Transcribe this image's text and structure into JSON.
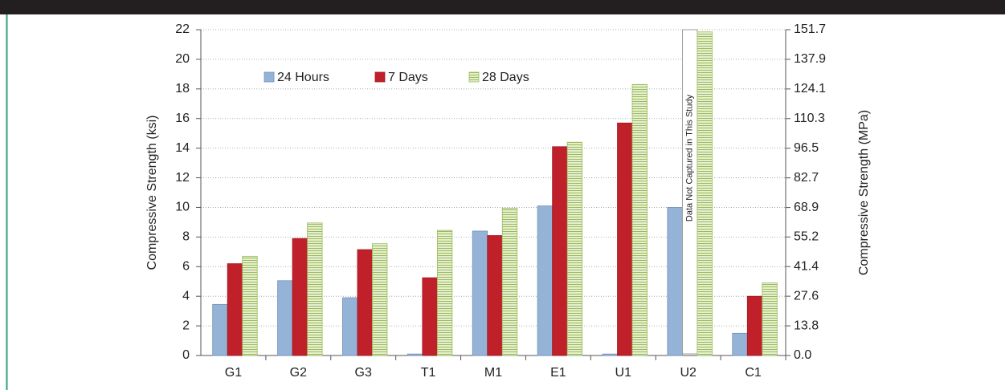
{
  "chart_data": {
    "type": "bar",
    "ylabel": "Compressive Strength (ksi)",
    "y2label": "Compressive Strength (MPa)",
    "categories": [
      "G1",
      "G2",
      "G3",
      "T1",
      "M1",
      "E1",
      "U1",
      "U2",
      "C1"
    ],
    "series": [
      {
        "name": "24 Hours",
        "color": "#95b3d7",
        "values": [
          3.45,
          5.05,
          3.9,
          0.1,
          8.4,
          10.1,
          0.1,
          10.0,
          1.5
        ]
      },
      {
        "name": "7 Days",
        "color": "#c0202a",
        "values": [
          6.2,
          7.9,
          7.15,
          5.25,
          8.1,
          14.1,
          15.7,
          null,
          4.0
        ]
      },
      {
        "name": "28 Days",
        "color": "#9bbb59",
        "values": [
          6.7,
          8.95,
          7.55,
          8.45,
          9.95,
          14.4,
          18.3,
          21.85,
          4.9
        ]
      }
    ],
    "ylim": [
      0,
      22
    ],
    "yticks": [
      0,
      2,
      4,
      6,
      8,
      10,
      12,
      14,
      16,
      18,
      20,
      22
    ],
    "y2lim": [
      0,
      151.7
    ],
    "y2ticks": [
      {
        "value": 0,
        "label": "0.0"
      },
      13.8,
      27.6,
      41.4,
      55.2,
      68.9,
      82.7,
      96.5,
      110.3,
      124.1,
      137.9,
      151.7
    ],
    "annotation": "Data Not Captured in This Study",
    "grid": true,
    "legend": "top-left"
  }
}
